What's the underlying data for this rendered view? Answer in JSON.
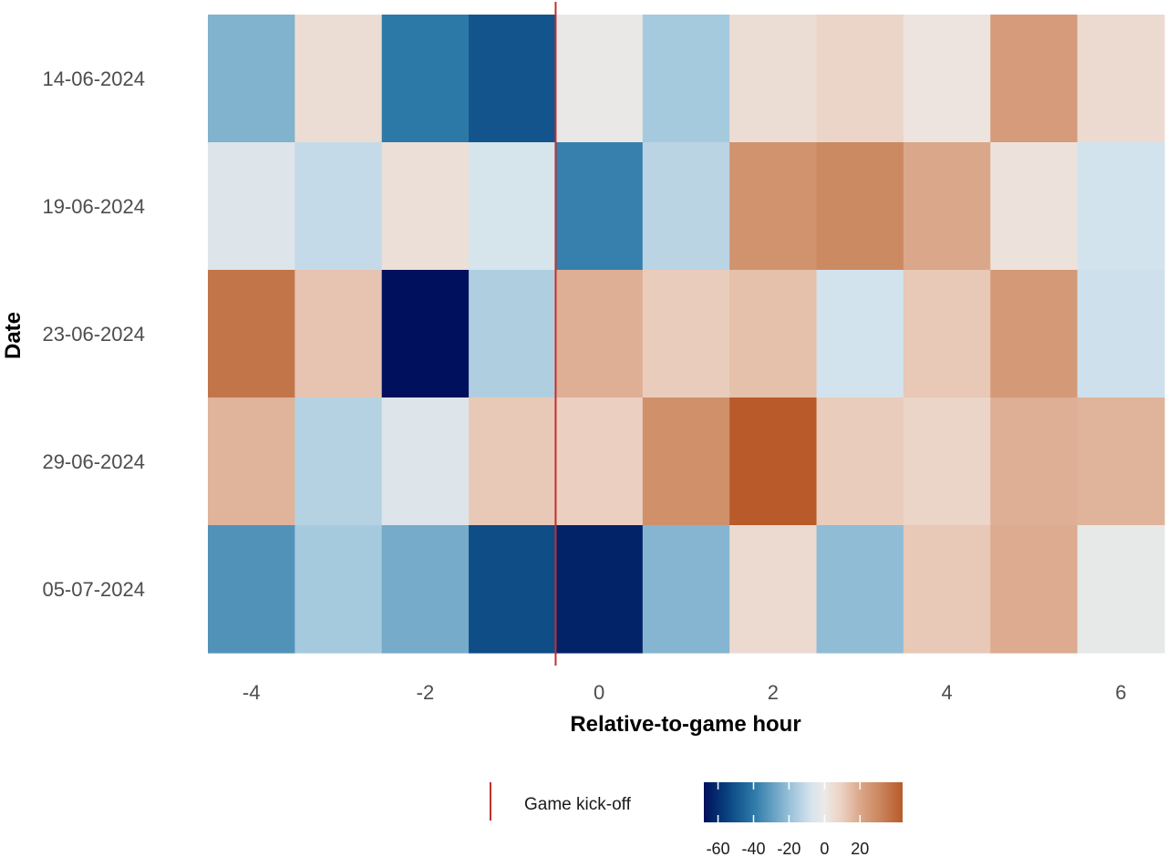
{
  "chart_data": {
    "type": "heatmap",
    "title": "",
    "xlabel": "Relative-to-game hour",
    "ylabel": "Date",
    "x": [
      -4,
      -3,
      -2,
      -1,
      0,
      1,
      2,
      3,
      4,
      5,
      6
    ],
    "x_ticks": [
      -4,
      -2,
      0,
      2,
      4,
      6
    ],
    "xlim": [
      -4.5,
      6.5
    ],
    "y": [
      "14-06-2024",
      "19-06-2024",
      "23-06-2024",
      "29-06-2024",
      "05-07-2024"
    ],
    "values": [
      [
        -24,
        5,
        -40,
        -50,
        -1,
        -17,
        5,
        8,
        2,
        24,
        6
      ],
      [
        -5,
        -11,
        4,
        -7,
        -38,
        -13,
        27,
        30,
        20,
        3,
        -8
      ],
      [
        36,
        13,
        -68,
        -15,
        18,
        11,
        14,
        -8,
        12,
        25,
        -9
      ],
      [
        17,
        -14,
        -5,
        12,
        10,
        28,
        44,
        11,
        8,
        18,
        17
      ],
      [
        -33,
        -17,
        -26,
        -52,
        -63,
        -23,
        6,
        -21,
        12,
        19,
        -2
      ]
    ],
    "color_scale": {
      "limits": [
        -68,
        44
      ],
      "stops": [
        {
          "value": -68,
          "color": "#00105c"
        },
        {
          "value": -55,
          "color": "#08427e"
        },
        {
          "value": -40,
          "color": "#2c79a8"
        },
        {
          "value": -20,
          "color": "#96c0d8"
        },
        {
          "value": -8,
          "color": "#d3e3ed"
        },
        {
          "value": 0,
          "color": "#ede9e6"
        },
        {
          "value": 10,
          "color": "#ebd0c1"
        },
        {
          "value": 20,
          "color": "#dba78a"
        },
        {
          "value": 30,
          "color": "#cc8a62"
        },
        {
          "value": 44,
          "color": "#b85a2a"
        }
      ],
      "ticks": [
        -60,
        -40,
        -20,
        0,
        20
      ]
    },
    "vline": {
      "x": -0.5,
      "color": "#c03030",
      "label": "Game kick-off"
    },
    "legend_position": "bottom",
    "grid": false
  }
}
